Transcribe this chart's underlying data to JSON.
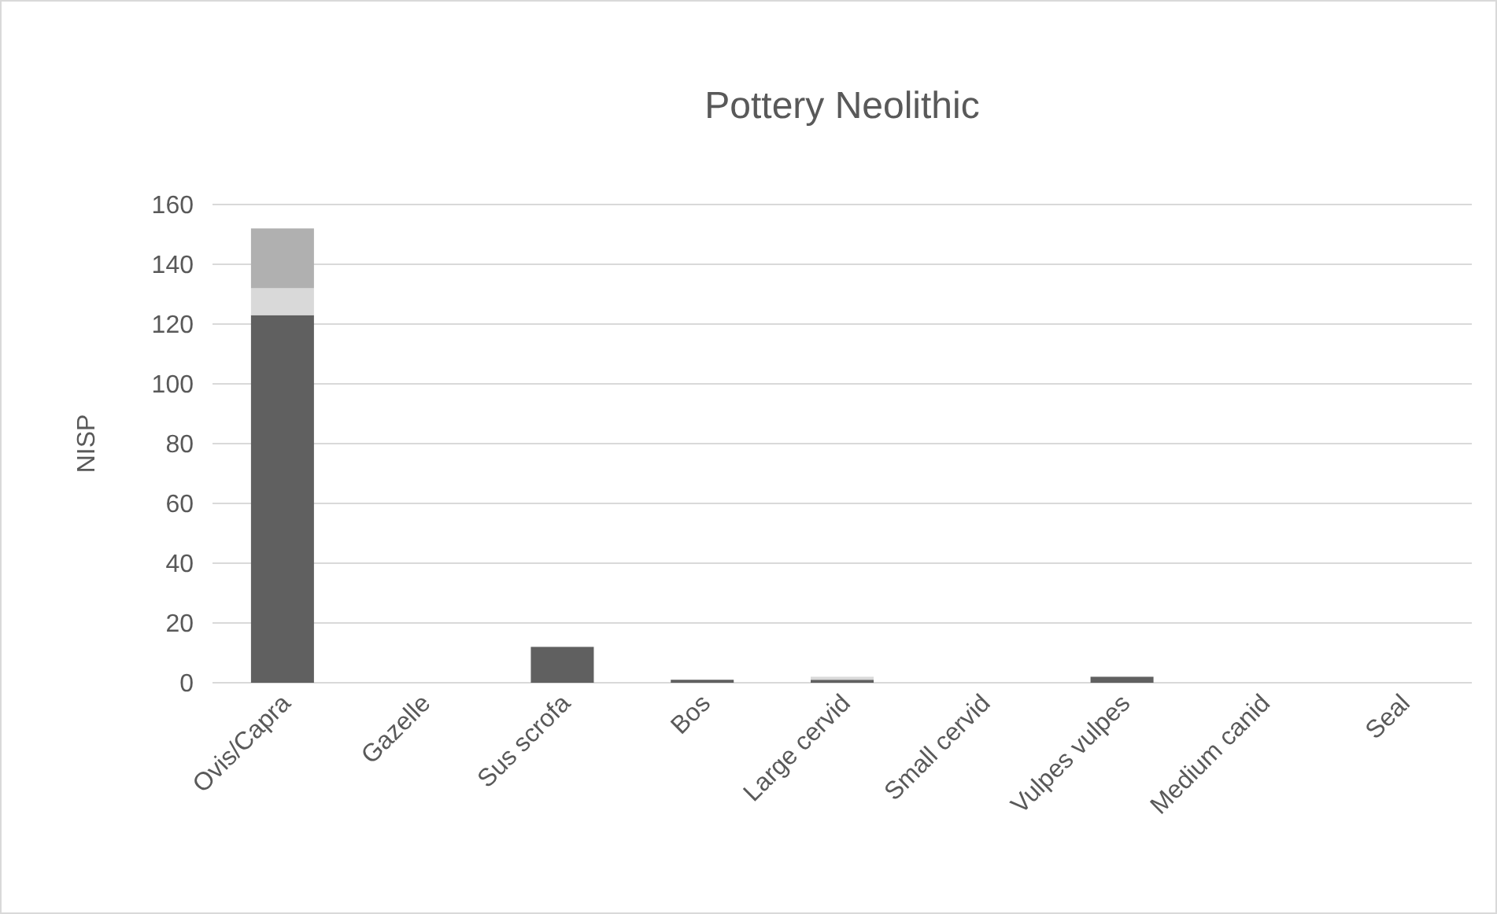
{
  "chart_data": {
    "type": "bar",
    "title": "Pottery Neolithic",
    "ylabel": "NISP",
    "stacked": true,
    "categories": [
      "Ovis/Capra",
      "Gazelle",
      "Sus scrofa",
      "Bos",
      "Large cervid",
      "Small cervid",
      "Vulpes vulpes",
      "Medium canid",
      "Seal"
    ],
    "series": [
      {
        "color": "#606060",
        "values": [
          123,
          0,
          12,
          1,
          1,
          0,
          2,
          0,
          0
        ]
      },
      {
        "color": "#d9d9d9",
        "values": [
          9,
          0,
          0,
          0,
          1,
          0,
          0,
          0,
          0
        ]
      },
      {
        "color": "#b0b0b0",
        "values": [
          20,
          0,
          0,
          0,
          0,
          0,
          0,
          0,
          0
        ]
      }
    ],
    "ylim": [
      0,
      160
    ],
    "yticks": [
      0,
      20,
      40,
      60,
      80,
      100,
      120,
      140,
      160
    ],
    "grid": "y"
  }
}
